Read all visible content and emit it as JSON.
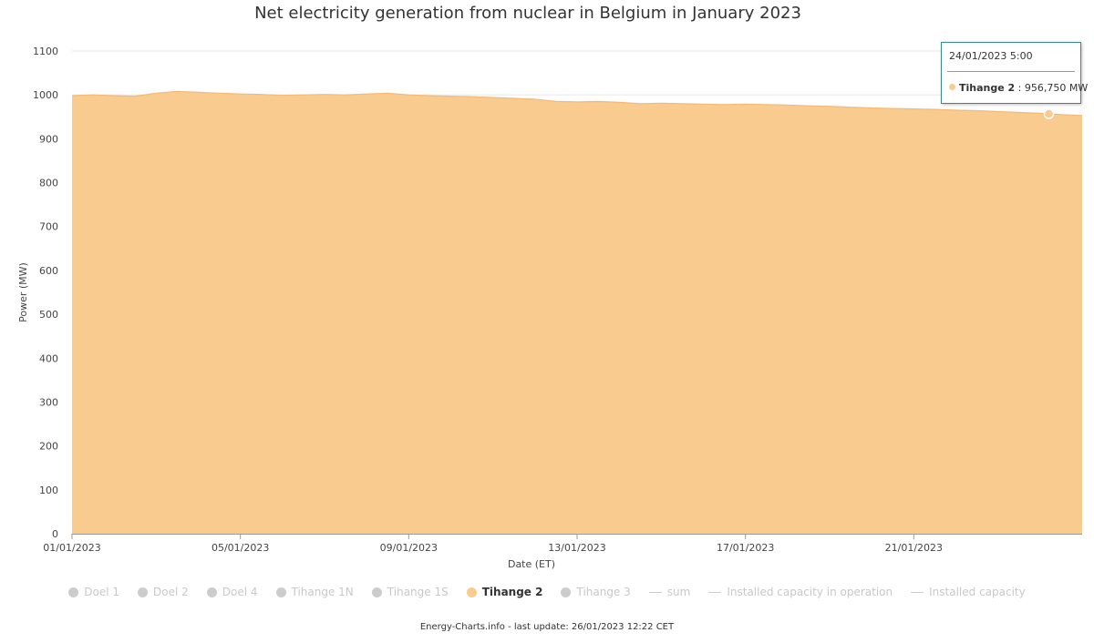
{
  "chart_data": {
    "type": "area",
    "title": "Net electricity generation from nuclear in Belgium in January 2023",
    "xlabel": "Date (ET)",
    "ylabel": "Power (MW)",
    "ylim": [
      0,
      1100
    ],
    "yticks": [
      0,
      100,
      200,
      300,
      400,
      500,
      600,
      700,
      800,
      900,
      1000,
      1100
    ],
    "xlim": [
      "01/01/2023",
      "25/01/2023 00:00"
    ],
    "xtick_labels": [
      "01/01/2023",
      "05/01/2023",
      "09/01/2023",
      "13/01/2023",
      "17/01/2023",
      "21/01/2023"
    ],
    "grid": true,
    "legend_position": "bottom",
    "color": "#f9cb8e",
    "series": [
      {
        "name": "Tihange 2",
        "x": [
          "01/01/2023 00:00",
          "01/01/2023 12:00",
          "02/01/2023 00:00",
          "02/01/2023 12:00",
          "03/01/2023 00:00",
          "03/01/2023 12:00",
          "04/01/2023 00:00",
          "04/01/2023 12:00",
          "05/01/2023 00:00",
          "05/01/2023 12:00",
          "06/01/2023 00:00",
          "06/01/2023 12:00",
          "07/01/2023 00:00",
          "07/01/2023 12:00",
          "08/01/2023 00:00",
          "08/01/2023 12:00",
          "09/01/2023 00:00",
          "09/01/2023 12:00",
          "10/01/2023 00:00",
          "10/01/2023 12:00",
          "11/01/2023 00:00",
          "11/01/2023 12:00",
          "12/01/2023 00:00",
          "12/01/2023 12:00",
          "13/01/2023 00:00",
          "13/01/2023 12:00",
          "14/01/2023 00:00",
          "14/01/2023 12:00",
          "15/01/2023 00:00",
          "15/01/2023 12:00",
          "16/01/2023 00:00",
          "16/01/2023 12:00",
          "17/01/2023 00:00",
          "17/01/2023 12:00",
          "18/01/2023 00:00",
          "18/01/2023 12:00",
          "19/01/2023 00:00",
          "19/01/2023 12:00",
          "20/01/2023 00:00",
          "20/01/2023 12:00",
          "21/01/2023 00:00",
          "21/01/2023 12:00",
          "22/01/2023 00:00",
          "22/01/2023 12:00",
          "23/01/2023 00:00",
          "23/01/2023 12:00",
          "24/01/2023 00:00",
          "24/01/2023 05:00",
          "24/01/2023 12:00",
          "25/01/2023 00:00"
        ],
        "y": [
          998,
          1000,
          998,
          997,
          1004,
          1008,
          1006,
          1004,
          1002,
          1001,
          999,
          1000,
          1001,
          1000,
          1002,
          1004,
          1000,
          998,
          997,
          996,
          994,
          992,
          990,
          985,
          984,
          985,
          983,
          980,
          981,
          980,
          979,
          978,
          979,
          978,
          977,
          975,
          974,
          972,
          970,
          969,
          968,
          967,
          965,
          964,
          962,
          960,
          958,
          956.75,
          955,
          953
        ]
      }
    ],
    "highlighted_point": {
      "series": "Tihange 2",
      "x": "24/01/2023 05:00",
      "y": 956.75
    }
  },
  "legend": {
    "items": [
      {
        "label": "Doel 1",
        "marker": "dot",
        "active": false
      },
      {
        "label": "Doel 2",
        "marker": "dot",
        "active": false
      },
      {
        "label": "Doel 4",
        "marker": "dot",
        "active": false
      },
      {
        "label": "Tihange 1N",
        "marker": "dot",
        "active": false
      },
      {
        "label": "Tihange 1S",
        "marker": "dot",
        "active": false
      },
      {
        "label": "Tihange 2",
        "marker": "dot",
        "active": true
      },
      {
        "label": "Tihange 3",
        "marker": "dot",
        "active": false
      },
      {
        "label": "sum",
        "marker": "line",
        "active": false
      },
      {
        "label": "Installed capacity in operation",
        "marker": "line",
        "active": false
      },
      {
        "label": "Installed capacity",
        "marker": "line",
        "active": false
      }
    ]
  },
  "tooltip": {
    "date": "24/01/2023 5:00",
    "series": "Tihange 2",
    "separator": " : ",
    "value": "956,750 MW"
  },
  "footer": {
    "text": "Energy-Charts.info - last update: 26/01/2023 12:22 CET"
  }
}
